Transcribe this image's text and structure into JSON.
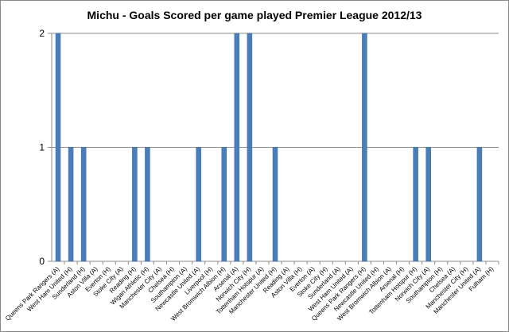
{
  "chart_data": {
    "type": "bar",
    "title": "Michu - Goals Scored per game played Premier League 2012/13",
    "xlabel": "",
    "ylabel": "",
    "ylim": [
      0,
      2
    ],
    "yticks": [
      "0",
      "1",
      "2"
    ],
    "grid": true,
    "bar_color": "#4a7ebb",
    "categories": [
      "Queens Park Rangers (A)",
      "West Ham United (H)",
      "Sunderland (H)",
      "Aston Villa (A)",
      "Everton (H)",
      "Stoke City (A)",
      "Reading (H)",
      "Wigan Athletic (H)",
      "Manchester City (A)",
      "Chelsea (H)",
      "Southampton (A)",
      "Newcastle United (A)",
      "Liverpool (H)",
      "West Bromwich Albion (H)",
      "Arsenal (A)",
      "Norwich City (H)",
      "Tottenham Hotspur (A)",
      "Manchester United (H)",
      "Reading (A)",
      "Aston Villa (H)",
      "Everton (A)",
      "Stoke City (H)",
      "Sunderland (A)",
      "West Ham United (A)",
      "Queens Park Rangers (H)",
      "Newcastle United (H)",
      "West Bromwich Albion (A)",
      "Arsenal (H)",
      "Tottenham Hotspur (H)",
      "Norwich City (A)",
      "Southampton (H)",
      "Chelsea (A)",
      "Manchester City (H)",
      "Manchester United (A)",
      "Fulham (H)"
    ],
    "values": [
      2,
      1,
      1,
      0,
      0,
      0,
      1,
      1,
      0,
      0,
      0,
      1,
      0,
      1,
      2,
      2,
      0,
      1,
      0,
      0,
      0,
      0,
      0,
      0,
      2,
      0,
      0,
      0,
      1,
      1,
      0,
      0,
      0,
      1,
      0
    ]
  }
}
